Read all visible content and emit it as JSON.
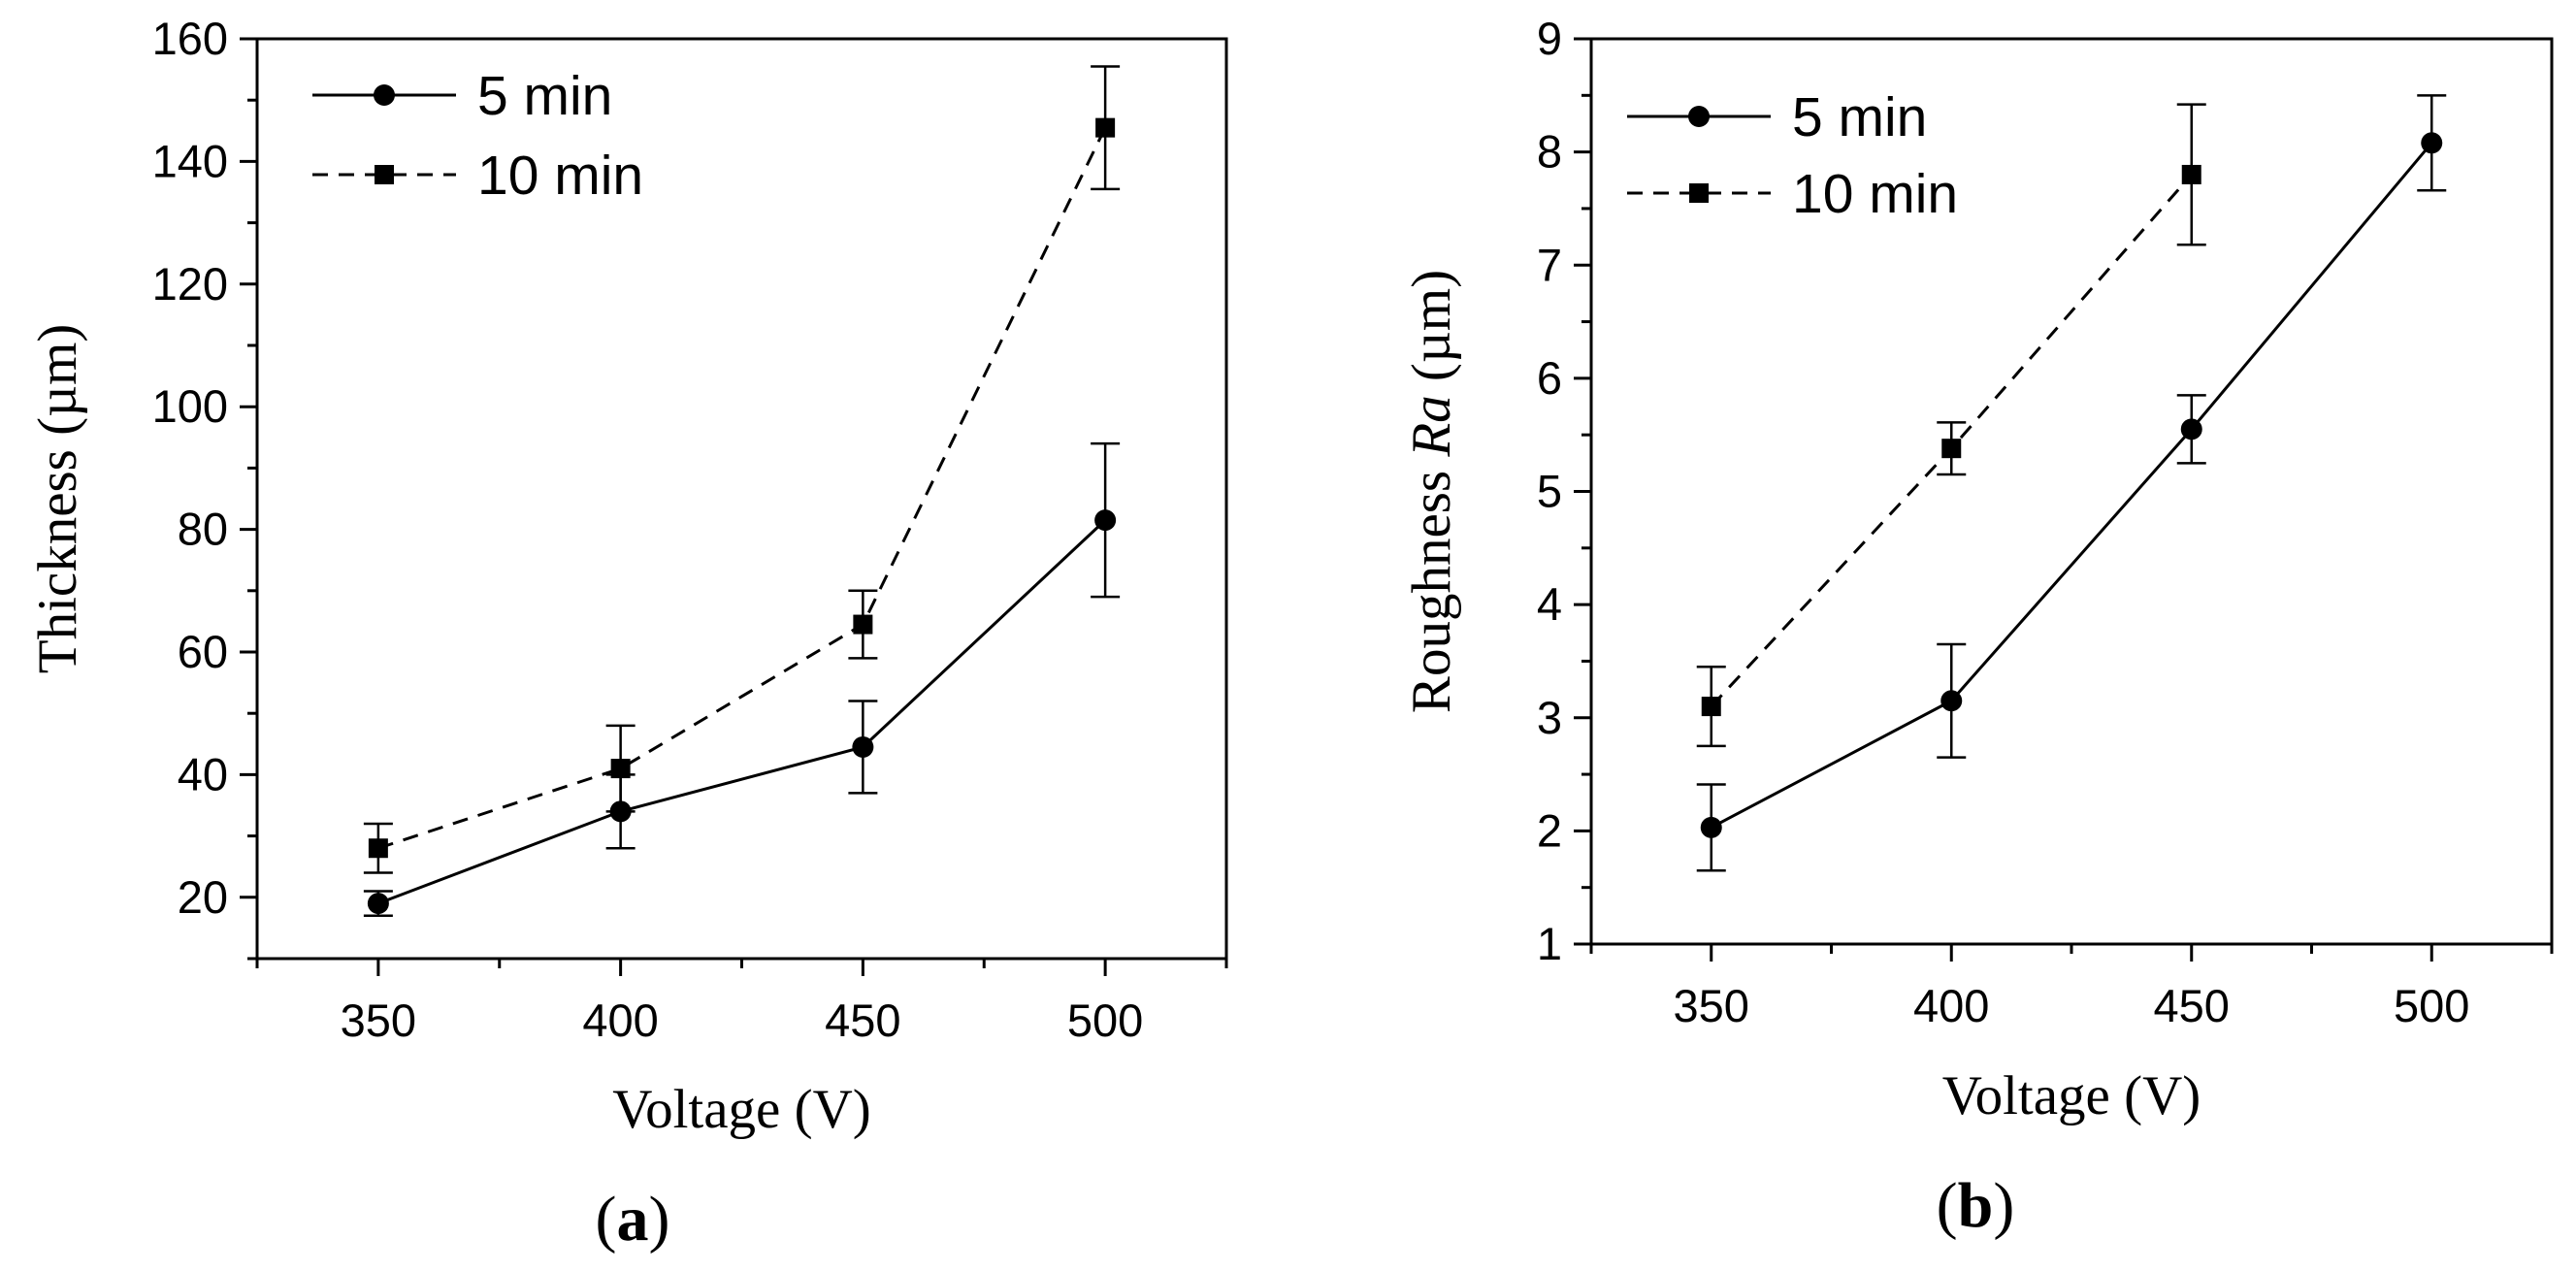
{
  "chart_data": [
    {
      "type": "line",
      "panel_label": "a",
      "xlabel": "Voltage (V)",
      "ylabel": "Thickness (µm)",
      "xlim": [
        325,
        525
      ],
      "ylim": [
        10,
        160
      ],
      "xticks": [
        350,
        400,
        450,
        500
      ],
      "yticks": [
        20,
        40,
        60,
        80,
        100,
        120,
        140,
        160
      ],
      "x": [
        350,
        400,
        450,
        500
      ],
      "legend_position": "top-left",
      "series": [
        {
          "name": "5 min",
          "marker": "circle",
          "linestyle": "solid",
          "values": [
            19,
            34,
            44.5,
            81.5
          ],
          "errors": [
            2,
            6,
            7.5,
            12.5
          ]
        },
        {
          "name": "10 min",
          "marker": "square",
          "linestyle": "dashed",
          "values": [
            28,
            41,
            64.5,
            145.5
          ],
          "errors": [
            4,
            7,
            5.5,
            10
          ]
        }
      ]
    },
    {
      "type": "line",
      "panel_label": "b",
      "xlabel": "Voltage (V)",
      "ylabel_prefix": "Roughness ",
      "ylabel_italic": "Ra",
      "ylabel_suffix": " (µm)",
      "xlim": [
        325,
        525
      ],
      "ylim": [
        1,
        9
      ],
      "xticks": [
        350,
        400,
        450,
        500
      ],
      "yticks": [
        1,
        2,
        3,
        4,
        5,
        6,
        7,
        8,
        9
      ],
      "x": [
        350,
        400,
        450,
        500
      ],
      "legend_position": "top-left",
      "series": [
        {
          "name": "5 min",
          "marker": "circle",
          "linestyle": "solid",
          "values": [
            2.03,
            3.15,
            5.55,
            8.08
          ],
          "errors": [
            0.38,
            0.5,
            0.3,
            0.42
          ]
        },
        {
          "name": "10 min",
          "marker": "square",
          "linestyle": "dashed",
          "values": [
            3.1,
            5.38,
            7.8,
            null
          ],
          "errors": [
            0.35,
            0.23,
            0.62,
            null
          ]
        }
      ]
    }
  ]
}
